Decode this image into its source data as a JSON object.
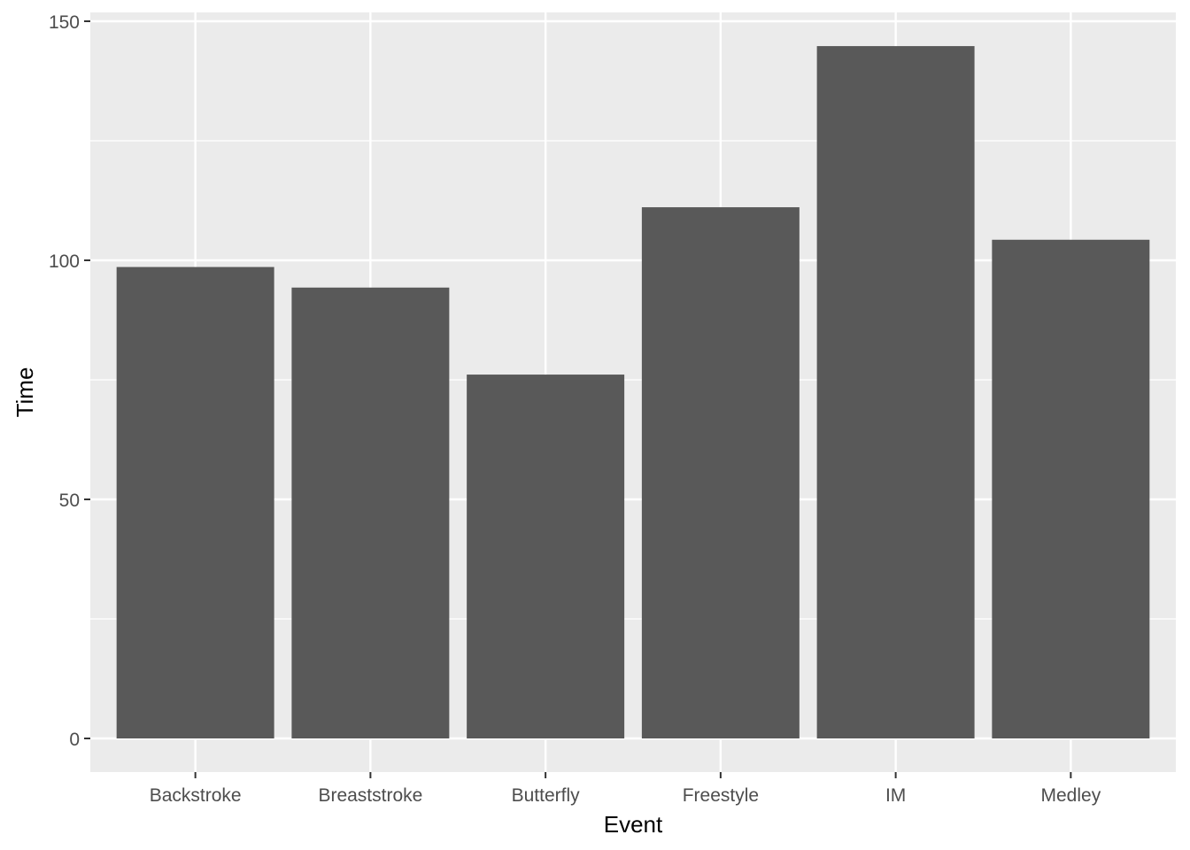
{
  "chart_data": {
    "type": "bar",
    "title": "",
    "xlabel": "Event",
    "ylabel": "Time",
    "categories": [
      "Backstroke",
      "Breaststroke",
      "Butterfly",
      "Freestyle",
      "IM",
      "Medley"
    ],
    "values": [
      98.6,
      94.3,
      76.1,
      111.1,
      144.8,
      104.3
    ],
    "ylim": [
      -7,
      152
    ],
    "yticks": [
      0,
      50,
      100,
      150
    ],
    "grid": true,
    "legend": "none",
    "colors": {
      "bar": "#595959",
      "panel": "#ebebeb",
      "grid": "#ffffff",
      "tick": "#333333"
    }
  }
}
